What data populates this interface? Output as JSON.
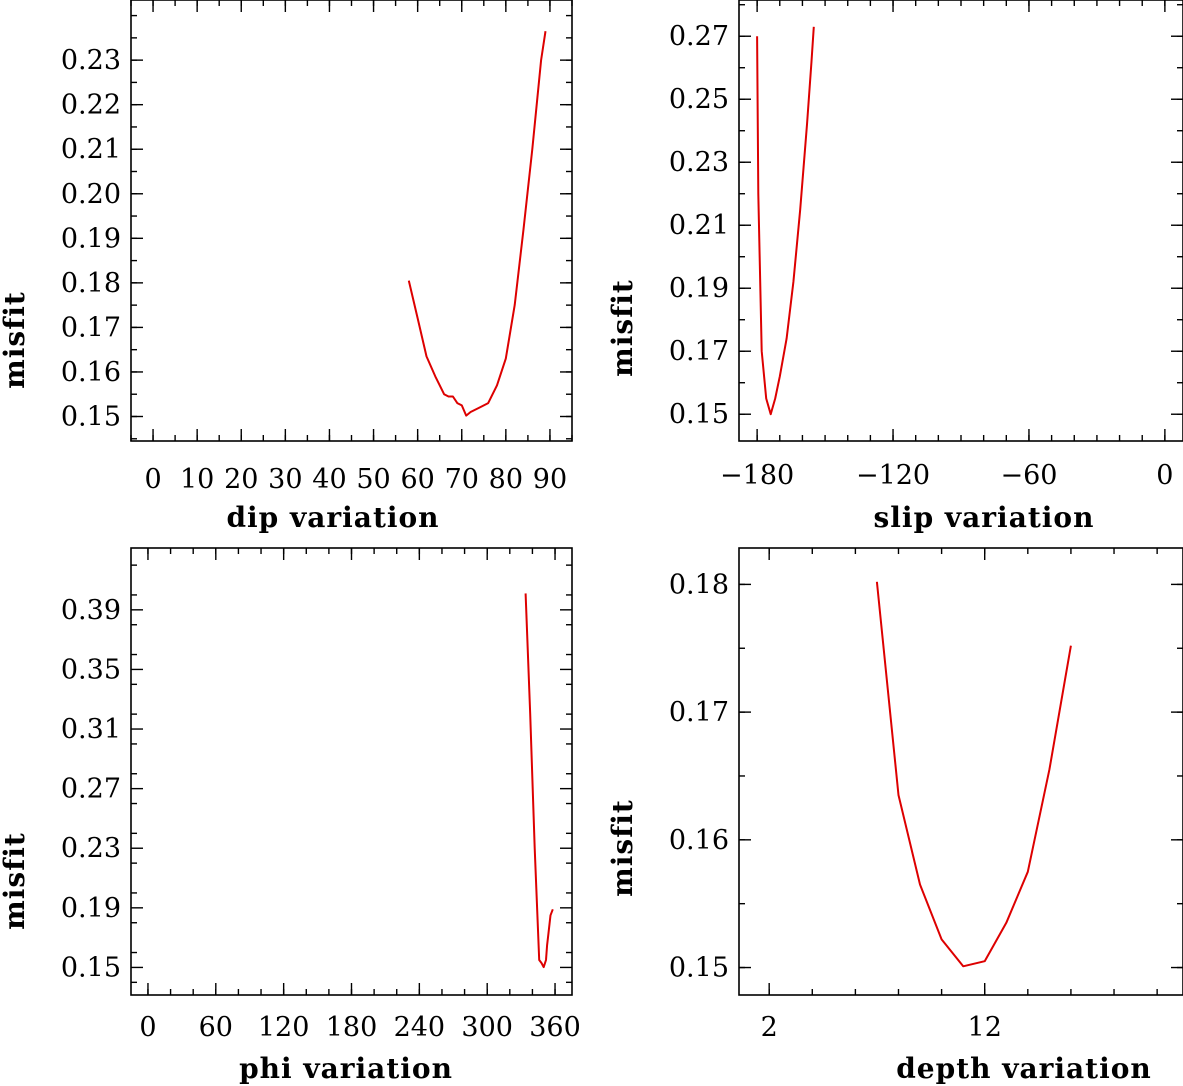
{
  "chart_data": [
    {
      "type": "line",
      "xlabel": "dip    variation",
      "ylabel": "misfit",
      "xlim": [
        -5,
        95
      ],
      "ylim": [
        0.1445,
        0.2435
      ],
      "xticks": [
        0,
        10,
        20,
        30,
        40,
        50,
        60,
        70,
        80,
        90
      ],
      "yticks": [
        0.15,
        0.16,
        0.17,
        0.18,
        0.19,
        0.2,
        0.21,
        0.22,
        0.23
      ],
      "ytick_labels": [
        "0.15",
        "0.16",
        "0.17",
        "0.18",
        "0.19",
        "0.20",
        "0.21",
        "0.22",
        "0.23"
      ],
      "series": [
        {
          "color": "#dd0000",
          "x": [
            58,
            60,
            62,
            64,
            66,
            67,
            68,
            69,
            70,
            71,
            72,
            74,
            76,
            78,
            80,
            82,
            84,
            86,
            88,
            89
          ],
          "y": [
            0.1805,
            0.172,
            0.1635,
            0.159,
            0.155,
            0.1545,
            0.1545,
            0.153,
            0.1525,
            0.1502,
            0.151,
            0.152,
            0.153,
            0.157,
            0.163,
            0.175,
            0.192,
            0.21,
            0.23,
            0.2365
          ]
        }
      ]
    },
    {
      "type": "line",
      "xlabel": "slip    variation",
      "ylabel": "misfit",
      "xlim": [
        -188,
        8
      ],
      "ylim": [
        0.1415,
        0.2815
      ],
      "xticks": [
        -180,
        -120,
        -60,
        0
      ],
      "xtick_labels": [
        "−180",
        "−120",
        "−60",
        "0"
      ],
      "yticks": [
        0.15,
        0.17,
        0.19,
        0.21,
        0.23,
        0.25,
        0.27
      ],
      "ytick_labels": [
        "0.15",
        "0.17",
        "0.19",
        "0.21",
        "0.23",
        "0.25",
        "0.27"
      ],
      "series": [
        {
          "color": "#dd0000",
          "x": [
            -180,
            -179.5,
            -178,
            -176,
            -174,
            -172,
            -170,
            -167,
            -164,
            -161,
            -158,
            -156,
            -155
          ],
          "y": [
            0.27,
            0.22,
            0.17,
            0.155,
            0.15,
            0.155,
            0.162,
            0.174,
            0.192,
            0.215,
            0.242,
            0.262,
            0.273
          ]
        }
      ]
    },
    {
      "type": "line",
      "xlabel": "phi    variation",
      "ylabel": "misfit",
      "xlim": [
        -15,
        375
      ],
      "ylim": [
        0.1315,
        0.4315
      ],
      "xticks": [
        0,
        60,
        120,
        180,
        240,
        300,
        360
      ],
      "yticks": [
        0.15,
        0.19,
        0.23,
        0.27,
        0.31,
        0.35,
        0.39
      ],
      "ytick_labels": [
        "0.15",
        "0.19",
        "0.23",
        "0.27",
        "0.31",
        "0.35",
        "0.39"
      ],
      "series": [
        {
          "color": "#dd0000",
          "x": [
            334,
            338,
            342,
            346,
            348,
            350,
            352,
            353,
            354,
            356,
            358
          ],
          "y": [
            0.401,
            0.32,
            0.23,
            0.155,
            0.153,
            0.1502,
            0.155,
            0.165,
            0.172,
            0.185,
            0.189
          ]
        }
      ]
    },
    {
      "type": "line",
      "xlabel": "depth    variation",
      "ylabel": "misfit",
      "xlim": [
        0.6,
        21.2
      ],
      "ylim": [
        0.14785,
        0.18285
      ],
      "xticks": [
        2,
        12
      ],
      "yticks": [
        0.15,
        0.16,
        0.17,
        0.18
      ],
      "ytick_labels": [
        "0.15",
        "0.16",
        "0.17",
        "0.18"
      ],
      "series": [
        {
          "color": "#dd0000",
          "x": [
            7,
            8,
            9,
            10,
            11,
            12,
            13,
            14,
            15,
            16
          ],
          "y": [
            0.1802,
            0.1635,
            0.1565,
            0.1522,
            0.1501,
            0.1505,
            0.1535,
            0.1575,
            0.1655,
            0.1752
          ]
        }
      ]
    }
  ]
}
